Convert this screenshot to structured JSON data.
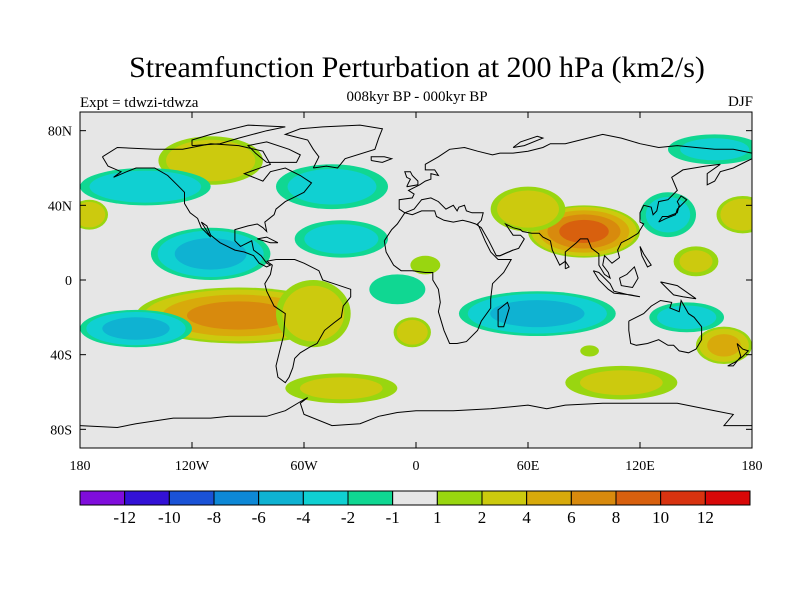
{
  "header": {
    "title": "Streamfunction Perturbation at 200 hPa (km2/s)",
    "subtitle": "008kyr BP - 000kyr BP",
    "left_label": "Expt = tdwzi-tdwza",
    "right_label": "DJF"
  },
  "map": {
    "projection": "cylindrical-equidistant",
    "lon_range": [
      -180,
      180
    ],
    "lat_range": [
      -90,
      90
    ],
    "background_color": "#e6e6e6",
    "x_ticks": [
      {
        "lon": -180,
        "label": "180"
      },
      {
        "lon": -120,
        "label": "120W"
      },
      {
        "lon": -60,
        "label": "60W"
      },
      {
        "lon": 0,
        "label": "0"
      },
      {
        "lon": 60,
        "label": "60E"
      },
      {
        "lon": 120,
        "label": "120E"
      },
      {
        "lon": 180,
        "label": "180"
      }
    ],
    "y_ticks": [
      {
        "lat": 80,
        "label": "80N"
      },
      {
        "lat": 40,
        "label": "40N"
      },
      {
        "lat": 0,
        "label": "0"
      },
      {
        "lat": -40,
        "label": "40S"
      },
      {
        "lat": -80,
        "label": "80S"
      }
    ]
  },
  "chart_data": {
    "type": "heatmap",
    "title": "Streamfunction Perturbation at 200 hPa (km2/s)",
    "xlabel": "",
    "ylabel": "",
    "anomalies": [
      {
        "name": "north-america-high",
        "lon": -110,
        "lat": 64,
        "value": 3.5,
        "rx": 28,
        "ry": 13
      },
      {
        "name": "north-pacific-low",
        "lon": -145,
        "lat": 50,
        "value": -3.5,
        "rx": 35,
        "ry": 10
      },
      {
        "name": "nw-atlantic-low",
        "lon": -45,
        "lat": 50,
        "value": -2.5,
        "rx": 30,
        "ry": 12
      },
      {
        "name": "tropical-pacific-low",
        "lon": -110,
        "lat": 14,
        "value": -4.5,
        "rx": 32,
        "ry": 14
      },
      {
        "name": "atlantic-tropical-low",
        "lon": -40,
        "lat": 22,
        "value": -2.5,
        "rx": 25,
        "ry": 10
      },
      {
        "name": "south-pacific-high",
        "lon": -95,
        "lat": -19,
        "value": 6.5,
        "rx": 55,
        "ry": 15
      },
      {
        "name": "south-america-high",
        "lon": -55,
        "lat": -18,
        "value": 3,
        "rx": 20,
        "ry": 18
      },
      {
        "name": "sw-pacific-low",
        "lon": -150,
        "lat": -26,
        "value": -4.5,
        "rx": 30,
        "ry": 10
      },
      {
        "name": "dateline-west-high",
        "lon": 175,
        "lat": 35,
        "value": 3.5,
        "rx": 14,
        "ry": 10
      },
      {
        "name": "dateline-east-high",
        "lon": -175,
        "lat": 35,
        "value": 3.5,
        "rx": 10,
        "ry": 8
      },
      {
        "name": "south-atlantic-high",
        "lon": -40,
        "lat": -58,
        "value": 2,
        "rx": 30,
        "ry": 8
      },
      {
        "name": "south-atlantic-east-high",
        "lon": -2,
        "lat": -28,
        "value": 3,
        "rx": 10,
        "ry": 8
      },
      {
        "name": "asia-high",
        "lon": 90,
        "lat": 26,
        "value": 8.5,
        "rx": 30,
        "ry": 14
      },
      {
        "name": "north-africa-high",
        "lon": 60,
        "lat": 38,
        "value": 3,
        "rx": 20,
        "ry": 12
      },
      {
        "name": "indian-ocean-low",
        "lon": 65,
        "lat": -18,
        "value": -4.5,
        "rx": 42,
        "ry": 12
      },
      {
        "name": "central-africa-high",
        "lon": 5,
        "lat": 8,
        "value": 1.8,
        "rx": 8,
        "ry": 5
      },
      {
        "name": "south-indian-high",
        "lon": 110,
        "lat": -55,
        "value": 2,
        "rx": 30,
        "ry": 9
      },
      {
        "name": "australia-east-high",
        "lon": 165,
        "lat": -35,
        "value": 4.5,
        "rx": 15,
        "ry": 10
      },
      {
        "name": "tasman-low",
        "lon": 145,
        "lat": -20,
        "value": -2.5,
        "rx": 20,
        "ry": 8
      },
      {
        "name": "indian-ocean-small-high",
        "lon": 93,
        "lat": -38,
        "value": 1.8,
        "rx": 5,
        "ry": 3
      },
      {
        "name": "siberia-arctic-low",
        "lon": 160,
        "lat": 70,
        "value": -2,
        "rx": 25,
        "ry": 8
      },
      {
        "name": "east-asia-low",
        "lon": 135,
        "lat": 35,
        "value": -2.5,
        "rx": 15,
        "ry": 12
      },
      {
        "name": "central-pacific-high",
        "lon": 150,
        "lat": 10,
        "value": 2,
        "rx": 12,
        "ry": 8
      },
      {
        "name": "west-atlantic-tropics",
        "lon": -10,
        "lat": -5,
        "value": -1.5,
        "rx": 15,
        "ry": 8
      }
    ]
  },
  "colorbar": {
    "levels": [
      -12,
      -10,
      -8,
      -6,
      -4,
      -2,
      -1,
      1,
      2,
      4,
      6,
      8,
      10,
      12
    ],
    "labels": [
      "-12",
      "-10",
      "-8",
      "-6",
      "-4",
      "-2",
      "-1",
      "1",
      "2",
      "4",
      "6",
      "8",
      "10",
      "12"
    ],
    "colors": [
      "#7f0ddb",
      "#3311d6",
      "#1a52d6",
      "#0d88d6",
      "#0fb2d2",
      "#10d0d2",
      "#10d792",
      "#e6e6e6",
      "#99d610",
      "#ccca0e",
      "#d8aa0b",
      "#d88a0d",
      "#d8600e",
      "#d83310",
      "#d80808"
    ]
  }
}
